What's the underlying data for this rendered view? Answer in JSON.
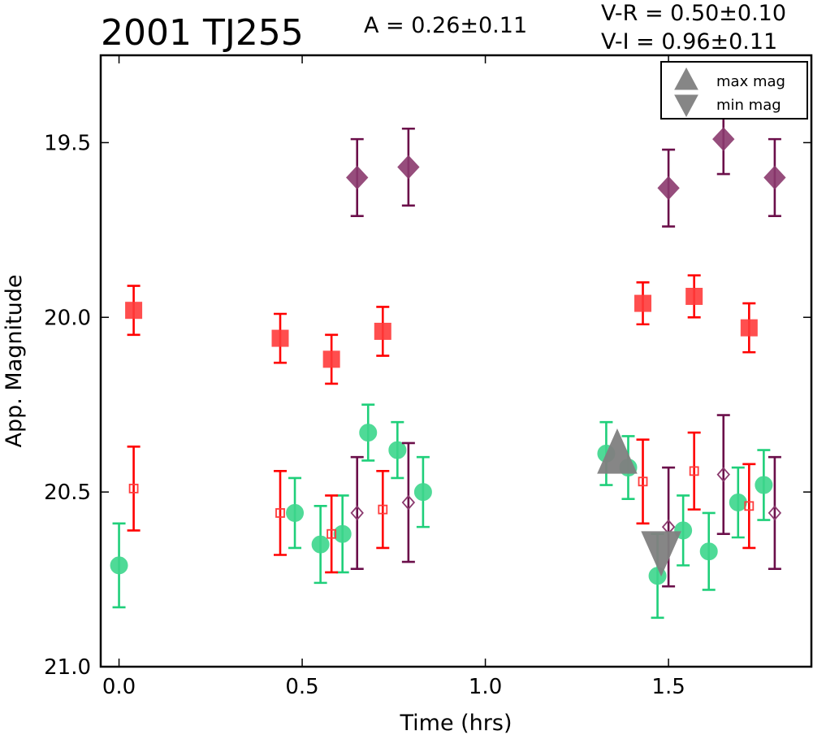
{
  "chart_data": {
    "type": "scatter",
    "title": "2001 TJ255",
    "annotations": {
      "amplitude": "A  = 0.26±0.11",
      "v_r": "V-R = 0.50±0.10",
      "v_i": "V-I  = 0.96±0.11"
    },
    "xlabel": "Time (hrs)",
    "ylabel": "App. Magnitude",
    "xlim": [
      -0.05,
      1.89
    ],
    "ylim": [
      21.0,
      19.25
    ],
    "y_inverted": true,
    "xticks": [
      0.0,
      0.5,
      1.0,
      1.5
    ],
    "xtick_labels": [
      "0.0",
      "0.5",
      "1.0",
      "1.5"
    ],
    "yticks": [
      19.5,
      20.0,
      20.5,
      21.0
    ],
    "ytick_labels": [
      "19.5",
      "20.0",
      "20.5",
      "21.0"
    ],
    "grid": false,
    "legend_placement": "top-right",
    "legend": [
      {
        "label": "max mag",
        "marker": "triangle-up",
        "color": "#808080"
      },
      {
        "label": "min mag",
        "marker": "triangle-down",
        "color": "#808080"
      }
    ],
    "series": [
      {
        "marker": "diamond",
        "fill": true,
        "color": "#8b3a6e",
        "errcolor": "#6b0f4a",
        "points": [
          {
            "x": 0.65,
            "y": 19.6,
            "err": 0.11
          },
          {
            "x": 0.79,
            "y": 19.57,
            "err": 0.11
          },
          {
            "x": 1.5,
            "y": 19.63,
            "err": 0.11
          },
          {
            "x": 1.65,
            "y": 19.49,
            "err": 0.1
          },
          {
            "x": 1.79,
            "y": 19.6,
            "err": 0.11
          }
        ]
      },
      {
        "marker": "square",
        "fill": true,
        "color": "#ff3b3b",
        "errcolor": "#ff0000",
        "points": [
          {
            "x": 0.04,
            "y": 19.98,
            "err": 0.07
          },
          {
            "x": 0.44,
            "y": 20.06,
            "err": 0.07
          },
          {
            "x": 0.58,
            "y": 20.12,
            "err": 0.07
          },
          {
            "x": 0.72,
            "y": 20.04,
            "err": 0.07
          },
          {
            "x": 1.43,
            "y": 19.96,
            "err": 0.06
          },
          {
            "x": 1.57,
            "y": 19.94,
            "err": 0.06
          },
          {
            "x": 1.72,
            "y": 20.03,
            "err": 0.07
          }
        ]
      },
      {
        "marker": "circle",
        "fill": true,
        "color": "#3dd68c",
        "errcolor": "#1fcf7a",
        "points": [
          {
            "x": 0.0,
            "y": 20.71,
            "err": 0.12
          },
          {
            "x": 0.48,
            "y": 20.56,
            "err": 0.1
          },
          {
            "x": 0.55,
            "y": 20.65,
            "err": 0.11
          },
          {
            "x": 0.61,
            "y": 20.62,
            "err": 0.11
          },
          {
            "x": 0.68,
            "y": 20.33,
            "err": 0.08
          },
          {
            "x": 0.76,
            "y": 20.38,
            "err": 0.08
          },
          {
            "x": 0.83,
            "y": 20.5,
            "err": 0.1
          },
          {
            "x": 1.33,
            "y": 20.39,
            "err": 0.09
          },
          {
            "x": 1.39,
            "y": 20.43,
            "err": 0.09
          },
          {
            "x": 1.47,
            "y": 20.74,
            "err": 0.12
          },
          {
            "x": 1.54,
            "y": 20.61,
            "err": 0.1
          },
          {
            "x": 1.61,
            "y": 20.67,
            "err": 0.11
          },
          {
            "x": 1.69,
            "y": 20.53,
            "err": 0.1
          },
          {
            "x": 1.76,
            "y": 20.48,
            "err": 0.1
          }
        ]
      },
      {
        "marker": "square",
        "fill": false,
        "color": "#ff3b3b",
        "errcolor": "#ff0000",
        "points": [
          {
            "x": 0.04,
            "y": 20.49,
            "err": 0.12
          },
          {
            "x": 0.44,
            "y": 20.56,
            "err": 0.12
          },
          {
            "x": 0.58,
            "y": 20.62,
            "err": 0.11
          },
          {
            "x": 0.72,
            "y": 20.55,
            "err": 0.11
          },
          {
            "x": 1.43,
            "y": 20.47,
            "err": 0.12
          },
          {
            "x": 1.57,
            "y": 20.44,
            "err": 0.11
          },
          {
            "x": 1.72,
            "y": 20.54,
            "err": 0.12
          }
        ]
      },
      {
        "marker": "diamond",
        "fill": false,
        "color": "#8b3a6e",
        "errcolor": "#6b0f4a",
        "points": [
          {
            "x": 0.65,
            "y": 20.56,
            "err": 0.16
          },
          {
            "x": 0.79,
            "y": 20.53,
            "err": 0.17
          },
          {
            "x": 1.5,
            "y": 20.6,
            "err": 0.17
          },
          {
            "x": 1.65,
            "y": 20.45,
            "err": 0.17
          },
          {
            "x": 1.79,
            "y": 20.56,
            "err": 0.16
          }
        ]
      },
      {
        "marker": "triangle-up",
        "fill": true,
        "color": "#808080",
        "opacity": 0.95,
        "points": [
          {
            "x": 1.36,
            "y": 20.4
          }
        ]
      },
      {
        "marker": "triangle-down",
        "fill": true,
        "color": "#808080",
        "opacity": 0.95,
        "points": [
          {
            "x": 1.48,
            "y": 20.66
          }
        ]
      }
    ]
  }
}
